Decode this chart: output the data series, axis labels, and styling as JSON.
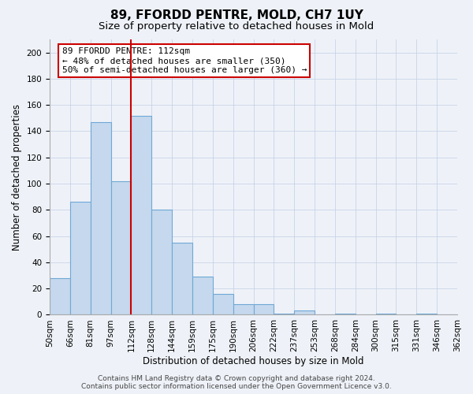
{
  "title": "89, FFORDD PENTRE, MOLD, CH7 1UY",
  "subtitle": "Size of property relative to detached houses in Mold",
  "xlabel": "Distribution of detached houses by size in Mold",
  "ylabel": "Number of detached properties",
  "bar_color": "#c5d8ed",
  "bar_edge_color": "#6fa8d6",
  "background_color": "#eef2f8",
  "bin_labels": [
    "50sqm",
    "66sqm",
    "81sqm",
    "97sqm",
    "112sqm",
    "128sqm",
    "144sqm",
    "159sqm",
    "175sqm",
    "190sqm",
    "206sqm",
    "222sqm",
    "237sqm",
    "253sqm",
    "268sqm",
    "284sqm",
    "300sqm",
    "315sqm",
    "331sqm",
    "346sqm",
    "362sqm"
  ],
  "bar_heights": [
    28,
    86,
    147,
    102,
    152,
    80,
    55,
    29,
    16,
    8,
    8,
    1,
    3,
    0,
    1,
    0,
    1,
    0,
    1,
    0
  ],
  "red_line_index": 4,
  "annotation_line1": "89 FFORDD PENTRE: 112sqm",
  "annotation_line2": "← 48% of detached houses are smaller (350)",
  "annotation_line3": "50% of semi-detached houses are larger (360) →",
  "ylim": [
    0,
    210
  ],
  "yticks": [
    0,
    20,
    40,
    60,
    80,
    100,
    120,
    140,
    160,
    180,
    200
  ],
  "footer_line1": "Contains HM Land Registry data © Crown copyright and database right 2024.",
  "footer_line2": "Contains public sector information licensed under the Open Government Licence v3.0.",
  "grid_color": "#c8d4e8",
  "red_line_color": "#cc0000",
  "annotation_box_facecolor": "#ffffff",
  "annotation_box_edgecolor": "#cc0000",
  "title_fontsize": 11,
  "subtitle_fontsize": 9.5,
  "axis_label_fontsize": 8.5,
  "tick_fontsize": 7.5,
  "annotation_fontsize": 8,
  "footer_fontsize": 6.5
}
